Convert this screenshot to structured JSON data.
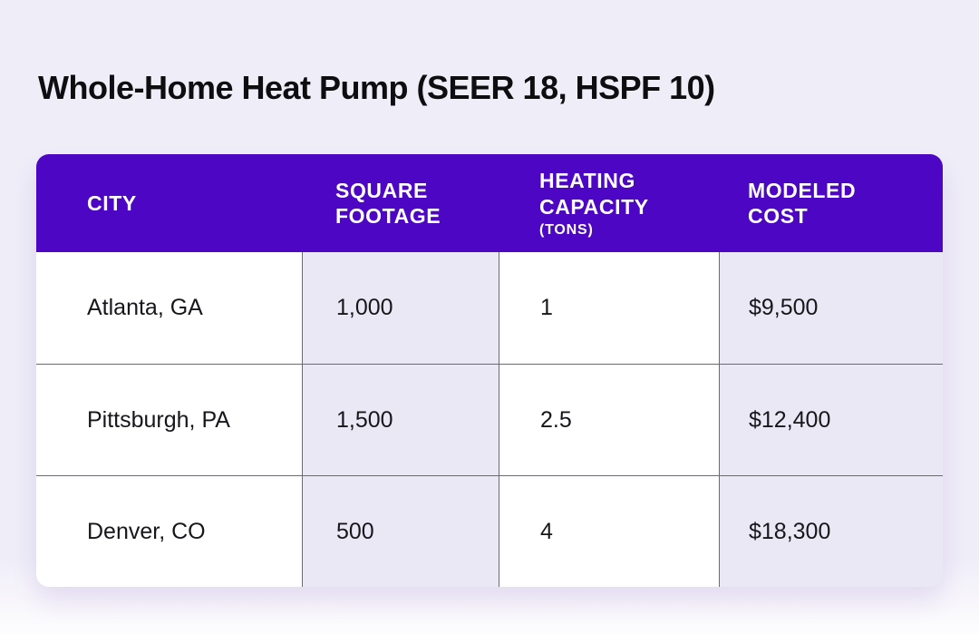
{
  "title": "Whole-Home Heat Pump (SEER 18, HSPF 10)",
  "colors": {
    "page_bg": "#EFEDF8",
    "header_bg": "#4C06C4",
    "header_text": "#FFFFFF",
    "cell_alt_bg": "#EBE8F6",
    "border": "#6B6A71",
    "body_text": "#17161A"
  },
  "table": {
    "columns": [
      {
        "label": "CITY"
      },
      {
        "label": "SQUARE FOOTAGE"
      },
      {
        "label": "HEATING CAPACITY",
        "sublabel": "(TONS)"
      },
      {
        "label": "MODELED COST"
      }
    ],
    "rows": [
      {
        "cells": [
          "Atlanta, GA",
          "1,000",
          "1",
          "$9,500"
        ]
      },
      {
        "cells": [
          "Pittsburgh, PA",
          "1,500",
          "2.5",
          "$12,400"
        ]
      },
      {
        "cells": [
          "Denver, CO",
          "500",
          "4",
          "$18,300"
        ]
      }
    ]
  },
  "chart_data": {
    "type": "table",
    "title": "Whole-Home Heat Pump (SEER 18, HSPF 10)",
    "columns": [
      "CITY",
      "SQUARE FOOTAGE",
      "HEATING CAPACITY (TONS)",
      "MODELED COST"
    ],
    "rows": [
      [
        "Atlanta, GA",
        "1,000",
        "1",
        "$9,500"
      ],
      [
        "Pittsburgh, PA",
        "1,500",
        "2.5",
        "$12,400"
      ],
      [
        "Denver, CO",
        "500",
        "4",
        "$18,300"
      ]
    ]
  }
}
